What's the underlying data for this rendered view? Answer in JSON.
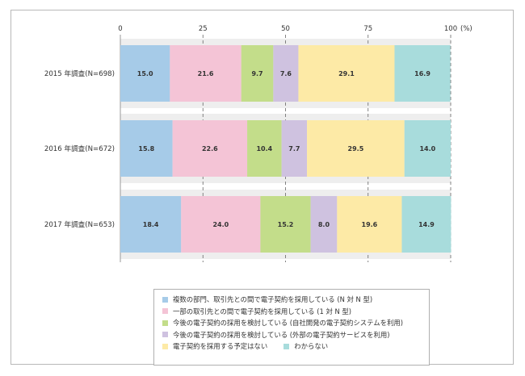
{
  "chart_data": {
    "type": "bar",
    "orientation": "horizontal",
    "stacked": true,
    "x_ticks": [
      0,
      25,
      50,
      75,
      100
    ],
    "x_unit_label": "(%)",
    "xlim": [
      0,
      100
    ],
    "grid": "dashed vertical at ticks",
    "legend_position": "bottom",
    "categories": [
      "2015 年調査(N=698)",
      "2016 年調査(N=672)",
      "2017 年調査(N=653)"
    ],
    "series": [
      {
        "name": "複数の部門、取引先との間で電子契約を採用している (N 対 N 型)",
        "color": "#a6cbe8",
        "values": [
          15.0,
          15.8,
          18.4
        ]
      },
      {
        "name": "一部の取引先との間で電子契約を採用している (1 対 N 型)",
        "color": "#f4c4d6",
        "values": [
          21.6,
          22.6,
          24.0
        ]
      },
      {
        "name": "今後の電子契約の採用を検討している (自社開発の電子契約システムを利用)",
        "color": "#c3dd8a",
        "values": [
          9.7,
          10.4,
          15.2
        ]
      },
      {
        "name": "今後の電子契約の採用を検討している (外部の電子契約サービスを利用)",
        "color": "#cfc2e0",
        "values": [
          7.6,
          7.7,
          8.0
        ]
      },
      {
        "name": "電子契約を採用する予定はない",
        "color": "#fdeaa6",
        "values": [
          29.1,
          29.5,
          19.6
        ]
      },
      {
        "name": "わからない",
        "color": "#a8dcdc",
        "values": [
          16.9,
          14.0,
          14.9
        ]
      }
    ]
  }
}
